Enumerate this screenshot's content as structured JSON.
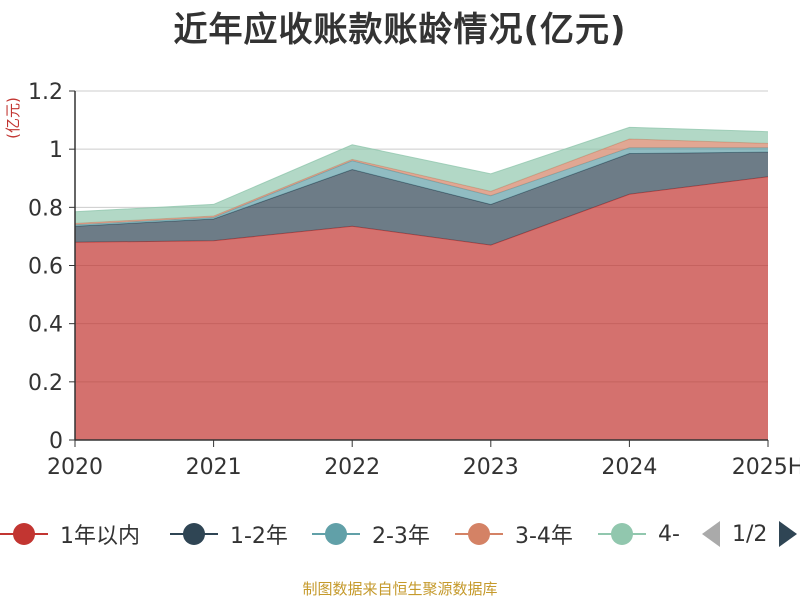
{
  "chart_data": {
    "type": "area",
    "stacked": true,
    "title": "近年应收账款账龄情况(亿元)",
    "ylabel": "(亿元)",
    "x": [
      "2020",
      "2021",
      "2022",
      "2023",
      "2024",
      "2025H"
    ],
    "ylim": [
      0,
      1.2
    ],
    "yticks": [
      0,
      0.2,
      0.4,
      0.6,
      0.8,
      1,
      1.2
    ],
    "ytick_labels": [
      "0",
      "0.2",
      "0.4",
      "0.6",
      "0.8",
      "1",
      "1.2"
    ],
    "grid": true,
    "legend_position": "bottom",
    "series": [
      {
        "name": "1年以内",
        "color": "#c23531",
        "values": [
          0.68,
          0.685,
          0.735,
          0.67,
          0.845,
          0.905
        ]
      },
      {
        "name": "1-2年",
        "color": "#2f4554",
        "values": [
          0.055,
          0.075,
          0.195,
          0.14,
          0.14,
          0.085
        ]
      },
      {
        "name": "2-3年",
        "color": "#61a0a8",
        "values": [
          0.005,
          0.005,
          0.03,
          0.03,
          0.02,
          0.015
        ]
      },
      {
        "name": "3-4年",
        "color": "#d48265",
        "values": [
          0.005,
          0.005,
          0.005,
          0.015,
          0.03,
          0.015
        ]
      },
      {
        "name": "4-",
        "color": "#91c7ae",
        "values": [
          0.04,
          0.04,
          0.05,
          0.06,
          0.04,
          0.04
        ]
      }
    ]
  },
  "legend": {
    "page": "1/2"
  },
  "source_text": "制图数据来自恒生聚源数据库"
}
